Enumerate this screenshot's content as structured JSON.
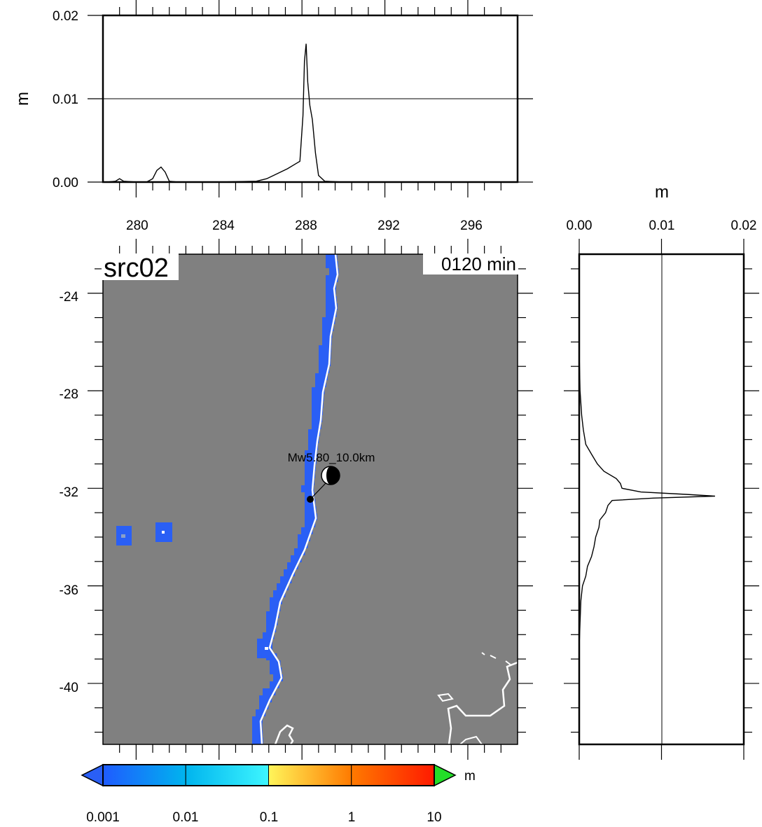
{
  "title": "src02",
  "timestamp": "0120 min",
  "earthquake_label": "Mw5.80_10.0km",
  "colors": {
    "land": "#808080",
    "coast": "#ffffff",
    "shallow_wave": "#2a5ff5",
    "cbar_1": "#1f5bff",
    "cbar_2": "#00b4ee",
    "cbar_3": "#3ef6ff",
    "cbar_4": "#fff55a",
    "cbar_5": "#ff7a00",
    "cbar_over": "#23dd28"
  },
  "colorbar": {
    "unit": "m",
    "tick_labels": [
      "0.001",
      "0.01",
      "0.1",
      "1",
      "10"
    ]
  },
  "chart_data": [
    {
      "type": "line",
      "name": "longitude-profile",
      "ylabel": "m",
      "y_ticks": [
        "0.00",
        "0.01",
        "0.02"
      ],
      "ylim": [
        0,
        0.02
      ],
      "x_ticks": [
        "280",
        "284",
        "288",
        "292",
        "296"
      ],
      "xlim": [
        278.4,
        298.4
      ],
      "grid": "horizontal line at 0.01",
      "x": [
        278.6,
        279.0,
        279.2,
        279.4,
        280.0,
        280.5,
        280.8,
        281.0,
        281.2,
        281.4,
        281.6,
        282.0,
        284.0,
        285.8,
        286.3,
        286.8,
        287.3,
        287.7,
        287.9,
        288.05,
        288.12,
        288.2,
        288.28,
        288.38,
        288.5,
        288.65,
        288.8,
        289.1,
        290.0,
        298.0
      ],
      "y": [
        0.0,
        0.0001,
        0.0004,
        0.0001,
        0.0,
        0.0,
        0.0004,
        0.0014,
        0.0018,
        0.0012,
        0.0001,
        0.0,
        0.0,
        0.0001,
        0.0004,
        0.001,
        0.0016,
        0.0022,
        0.0025,
        0.008,
        0.0145,
        0.0166,
        0.012,
        0.0092,
        0.0075,
        0.0035,
        0.0008,
        0.0001,
        0.0,
        0.0
      ]
    },
    {
      "type": "line",
      "name": "latitude-profile",
      "xlabel": "m",
      "x_ticks": [
        "0.00",
        "0.01",
        "0.02"
      ],
      "xlim": [
        0,
        0.02
      ],
      "y_ticks": [
        "-24",
        "-28",
        "-32",
        "-36",
        "-40"
      ],
      "ylim": [
        -42.5,
        -22.4
      ],
      "grid": "vertical line at 0.01",
      "lat": [
        -26.4,
        -28.0,
        -29.0,
        -29.6,
        -30.2,
        -30.6,
        -31.0,
        -31.3,
        -31.6,
        -31.8,
        -32.0,
        -32.15,
        -32.25,
        -32.32,
        -32.4,
        -32.5,
        -32.7,
        -33.0,
        -33.3,
        -33.6,
        -34.0,
        -34.4,
        -34.8,
        -35.2,
        -35.6,
        -36.0,
        -36.6,
        -37.5,
        -38.5
      ],
      "value": [
        0.0,
        0.0001,
        0.0003,
        0.0005,
        0.0008,
        0.0015,
        0.0022,
        0.003,
        0.0045,
        0.005,
        0.0052,
        0.0075,
        0.013,
        0.0165,
        0.009,
        0.004,
        0.0035,
        0.0032,
        0.0025,
        0.0024,
        0.002,
        0.0018,
        0.0015,
        0.001,
        0.0008,
        0.0004,
        0.0002,
        0.0001,
        0.0
      ]
    },
    {
      "type": "heatmap",
      "name": "max-wave-height-map",
      "x_ticks": [
        "280",
        "284",
        "288",
        "292",
        "296"
      ],
      "y_ticks": [
        "-24",
        "-28",
        "-32",
        "-36",
        "-40"
      ],
      "xlim": [
        278.4,
        298.4
      ],
      "ylim": [
        -42.5,
        -22.4
      ],
      "epicenter": {
        "lon": 288.1,
        "lat": -32.3
      }
    }
  ]
}
